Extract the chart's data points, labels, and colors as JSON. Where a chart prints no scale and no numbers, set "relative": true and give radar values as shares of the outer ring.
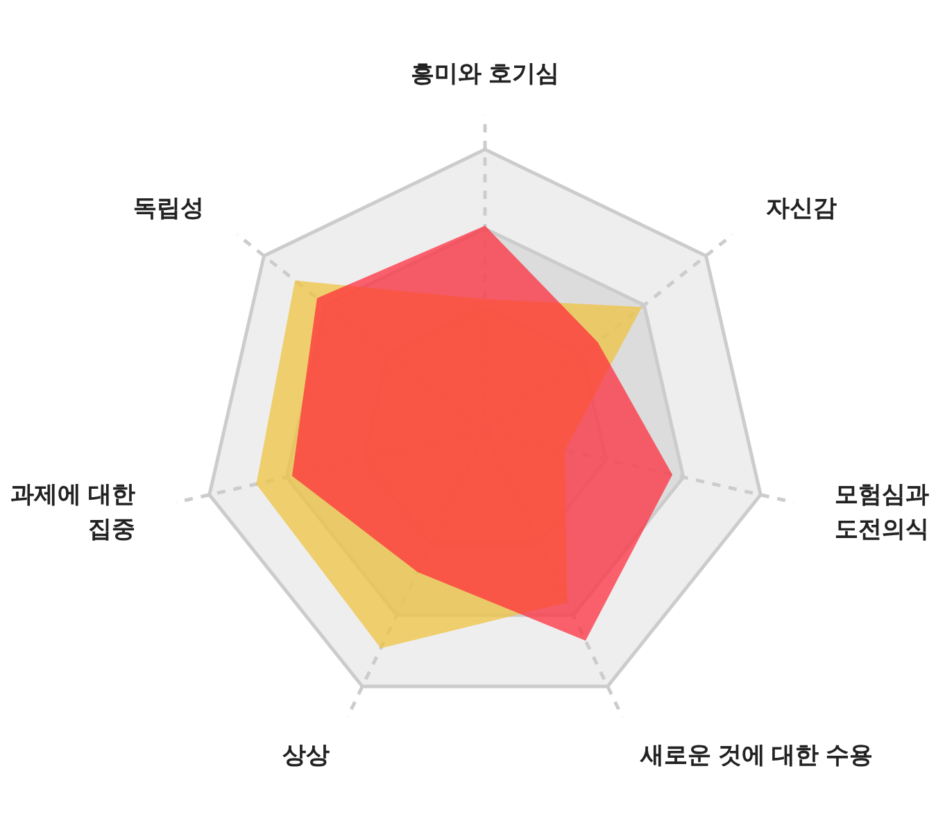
{
  "chart_data": {
    "type": "radar",
    "relative": true,
    "categories": [
      "흥미와 호기심",
      "자신감",
      "모험심과\n도전의식",
      "새로운 것에 대한 수용",
      "상상",
      "과제에 대한\n집중",
      "독립성"
    ],
    "grid": true,
    "series": [
      {
        "color": "#f0c23c",
        "values": [
          0.47,
          0.71,
          0.29,
          0.67,
          0.85,
          0.83,
          0.86
        ]
      },
      {
        "color": "#ff2a3a",
        "values": [
          0.73,
          0.51,
          0.68,
          0.82,
          0.55,
          0.7,
          0.76
        ]
      }
    ]
  }
}
